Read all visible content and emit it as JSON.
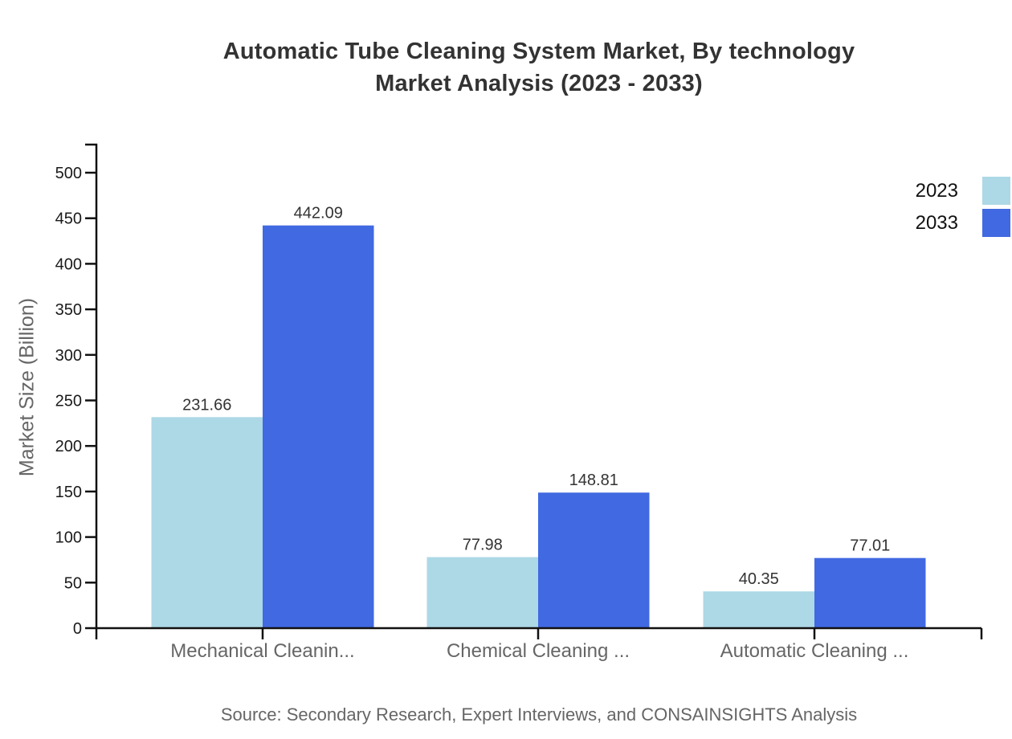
{
  "title": {
    "line1": "Automatic Tube Cleaning System Market, By technology",
    "line2": "Market Analysis (2023 - 2033)"
  },
  "source": "Source: Secondary Research, Expert Interviews, and CONSAINSIGHTS Analysis",
  "legend": [
    {
      "label": "2023",
      "color": "#add8e6"
    },
    {
      "label": "2033",
      "color": "#4169e1"
    }
  ],
  "colors": {
    "series_2023": "#add8e6",
    "series_2033": "#4169e1",
    "axis": "#111111",
    "title_text": "#333333",
    "muted_text": "#666666"
  },
  "chart_data": {
    "type": "bar",
    "title": "Automatic Tube Cleaning System Market, By technology Market Analysis (2023 - 2033)",
    "categories": [
      "Mechanical Cleanin...",
      "Chemical Cleaning ...",
      "Automatic Cleaning ..."
    ],
    "series": [
      {
        "name": "2023",
        "color": "#add8e6",
        "values": [
          231.66,
          77.98,
          40.35
        ]
      },
      {
        "name": "2033",
        "color": "#4169e1",
        "values": [
          442.09,
          148.81,
          77.01
        ]
      }
    ],
    "xlabel": "",
    "ylabel": "Market Size (Billion)",
    "ylim": [
      0,
      500
    ],
    "ytick_step": 50,
    "grid": false,
    "legend_position": "top-right",
    "value_labels": true
  }
}
